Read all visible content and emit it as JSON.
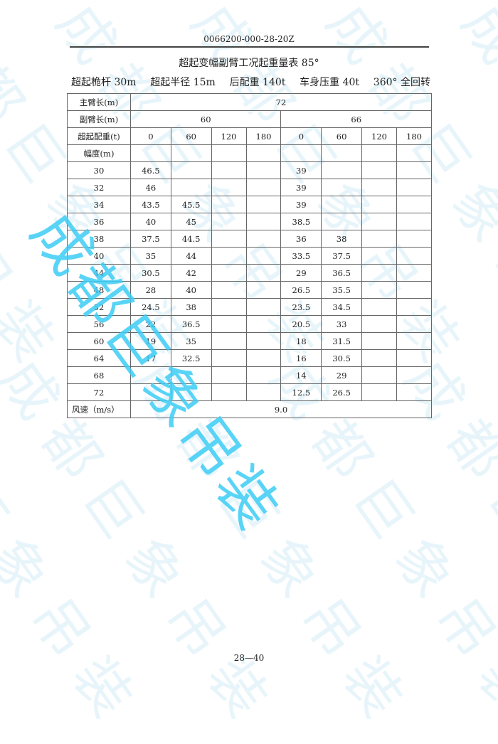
{
  "header": {
    "doc_code": "0066200-000-28-20Z"
  },
  "title": "超起变幅副臂工况起重量表 85°",
  "conditions": [
    "超起桅杆 30m",
    "超起半径 15m",
    "后配重 140t",
    "车身压重 40t",
    "360° 全回转"
  ],
  "table": {
    "main_boom_label": "主臂长(m)",
    "main_boom_value": "72",
    "jib_label": "副臂长(m)",
    "jib_values": [
      "60",
      "66"
    ],
    "counterweight_label": "超起配重(t)",
    "counterweights": [
      "0",
      "60",
      "120",
      "180",
      "0",
      "60",
      "120",
      "180"
    ],
    "radius_label": "幅度(m)",
    "rows": [
      {
        "radius": "30",
        "values": [
          "46.5",
          "",
          "",
          "",
          "39",
          "",
          "",
          ""
        ]
      },
      {
        "radius": "32",
        "values": [
          "46",
          "",
          "",
          "",
          "39",
          "",
          "",
          ""
        ]
      },
      {
        "radius": "34",
        "values": [
          "43.5",
          "45.5",
          "",
          "",
          "39",
          "",
          "",
          ""
        ]
      },
      {
        "radius": "36",
        "values": [
          "40",
          "45",
          "",
          "",
          "38.5",
          "",
          "",
          ""
        ]
      },
      {
        "radius": "38",
        "values": [
          "37.5",
          "44.5",
          "",
          "",
          "36",
          "38",
          "",
          ""
        ]
      },
      {
        "radius": "40",
        "values": [
          "35",
          "44",
          "",
          "",
          "33.5",
          "37.5",
          "",
          ""
        ]
      },
      {
        "radius": "44",
        "values": [
          "30.5",
          "42",
          "",
          "",
          "29",
          "36.5",
          "",
          ""
        ]
      },
      {
        "radius": "48",
        "values": [
          "28",
          "40",
          "",
          "",
          "26.5",
          "35.5",
          "",
          ""
        ]
      },
      {
        "radius": "52",
        "values": [
          "24.5",
          "38",
          "",
          "",
          "23.5",
          "34.5",
          "",
          ""
        ]
      },
      {
        "radius": "56",
        "values": [
          "22",
          "36.5",
          "",
          "",
          "20.5",
          "33",
          "",
          ""
        ]
      },
      {
        "radius": "60",
        "values": [
          "19",
          "35",
          "",
          "",
          "18",
          "31.5",
          "",
          ""
        ]
      },
      {
        "radius": "64",
        "values": [
          "17",
          "32.5",
          "",
          "",
          "16",
          "30.5",
          "",
          ""
        ]
      },
      {
        "radius": "68",
        "values": [
          "",
          "",
          "",
          "",
          "14",
          "29",
          "",
          ""
        ]
      },
      {
        "radius": "72",
        "values": [
          "",
          "",
          "",
          "",
          "12.5",
          "26.5",
          "",
          ""
        ]
      }
    ],
    "wind_label": "风速（m/s）",
    "wind_value": "9.0"
  },
  "watermark": "成都巨象吊装",
  "watermark_color": "#3ccdf5",
  "footer": {
    "page": "28—40"
  }
}
